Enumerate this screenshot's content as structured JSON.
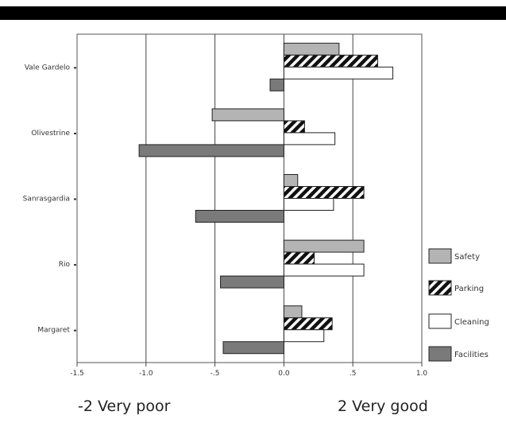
{
  "chart_data": {
    "type": "bar",
    "orientation": "horizontal",
    "categories": [
      "Vale Gardelo",
      "Olivestrine",
      "Sanrasgardia",
      "Rio",
      "Margaret"
    ],
    "series": [
      {
        "name": "Safety",
        "values": [
          0.4,
          -0.52,
          0.1,
          0.58,
          0.13
        ]
      },
      {
        "name": "Parking",
        "values": [
          0.68,
          0.15,
          0.58,
          0.22,
          0.35
        ]
      },
      {
        "name": "Cleaning",
        "values": [
          0.79,
          0.37,
          0.36,
          0.58,
          0.29
        ]
      },
      {
        "name": "Facilities",
        "values": [
          -0.1,
          -1.05,
          -0.64,
          -0.46,
          -0.44
        ]
      }
    ],
    "xlim": [
      -1.5,
      1.0
    ],
    "xticks": [
      "-1.5",
      "-1.0",
      "-.5",
      "0.0",
      ".5",
      "1.0"
    ],
    "grid": "vertical",
    "legend_position": "right",
    "colors": {
      "Safety": "#b4b4b4",
      "Parking": "#111111",
      "Cleaning": "#ffffff",
      "Facilities": "#7a7a7a"
    }
  },
  "footer": {
    "left": "-2 Very poor",
    "right": "2 Very good"
  }
}
